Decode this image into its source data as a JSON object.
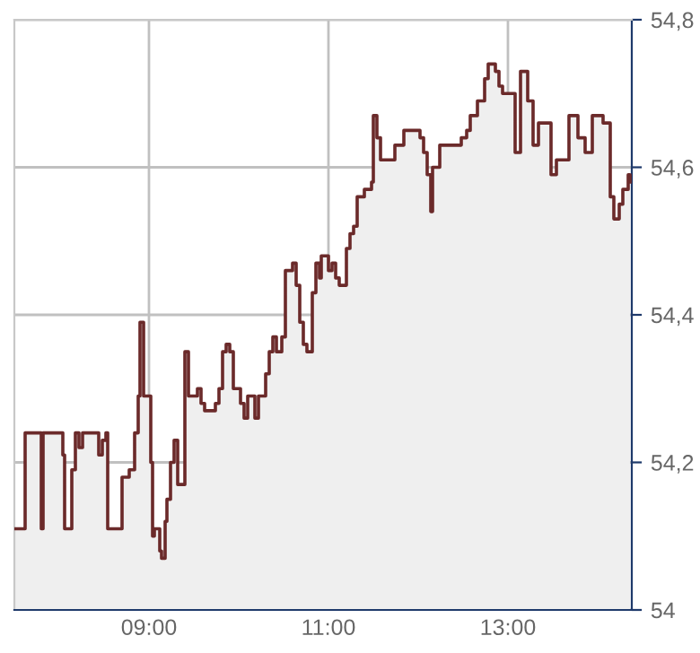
{
  "chart_data": {
    "type": "step",
    "xlim": [
      7.5,
      14.38
    ],
    "ylim": [
      54,
      54.8
    ],
    "xticks": [
      {
        "value": 9,
        "label": "09:00"
      },
      {
        "value": 11,
        "label": "11:00"
      },
      {
        "value": 13,
        "label": "13:00"
      }
    ],
    "yticks": [
      {
        "value": 54,
        "label": "54"
      },
      {
        "value": 54.2,
        "label": "54,2"
      },
      {
        "value": 54.4,
        "label": "54,4"
      },
      {
        "value": 54.6,
        "label": "54,6"
      },
      {
        "value": 54.8,
        "label": "54,8"
      }
    ],
    "grid": true,
    "marker": "none",
    "line_style": "solid",
    "x": [
      7.5,
      7.62,
      7.8,
      7.82,
      8.04,
      8.06,
      8.14,
      8.18,
      8.22,
      8.26,
      8.44,
      8.48,
      8.52,
      8.54,
      8.7,
      8.78,
      8.84,
      8.88,
      8.9,
      8.94,
      9.02,
      9.04,
      9.06,
      9.12,
      9.14,
      9.18,
      9.2,
      9.24,
      9.28,
      9.32,
      9.4,
      9.44,
      9.54,
      9.58,
      9.62,
      9.7,
      9.74,
      9.78,
      9.82,
      9.86,
      9.9,
      9.94,
      10.02,
      10.06,
      10.1,
      10.18,
      10.22,
      10.3,
      10.34,
      10.38,
      10.42,
      10.48,
      10.52,
      10.6,
      10.64,
      10.68,
      10.72,
      10.76,
      10.82,
      10.86,
      10.9,
      10.92,
      11.0,
      11.04,
      11.08,
      11.12,
      11.2,
      11.24,
      11.28,
      11.32,
      11.4,
      11.48,
      11.5,
      11.54,
      11.58,
      11.68,
      11.74,
      11.84,
      11.94,
      12.02,
      12.06,
      12.1,
      12.14,
      12.16,
      12.24,
      12.32,
      12.48,
      12.54,
      12.58,
      12.66,
      12.74,
      12.78,
      12.86,
      12.9,
      12.94,
      13.02,
      13.08,
      13.14,
      13.22,
      13.28,
      13.34,
      13.48,
      13.54,
      13.68,
      13.78,
      13.86,
      13.94,
      14.06,
      14.14,
      14.18,
      14.24,
      14.28,
      14.34,
      14.36
    ],
    "series": [
      {
        "type": "area",
        "color": "#efefef",
        "values": [
          54.11,
          54.24,
          54.11,
          54.24,
          54.21,
          54.11,
          54.19,
          54.24,
          54.22,
          54.24,
          54.21,
          54.23,
          54.24,
          54.11,
          54.18,
          54.19,
          54.24,
          54.29,
          54.39,
          54.29,
          54.2,
          54.1,
          54.11,
          54.08,
          54.07,
          54.12,
          54.15,
          54.2,
          54.23,
          54.17,
          54.35,
          54.29,
          54.3,
          54.28,
          54.27,
          54.27,
          54.28,
          54.3,
          54.35,
          54.36,
          54.35,
          54.3,
          54.28,
          54.26,
          54.29,
          54.26,
          54.29,
          54.32,
          54.35,
          54.37,
          54.35,
          54.37,
          54.46,
          54.47,
          54.44,
          54.39,
          54.36,
          54.35,
          54.43,
          54.47,
          54.45,
          54.48,
          54.46,
          54.47,
          54.45,
          54.44,
          54.49,
          54.51,
          54.52,
          54.56,
          54.57,
          54.58,
          54.67,
          54.64,
          54.61,
          54.61,
          54.63,
          54.65,
          54.65,
          54.64,
          54.62,
          54.59,
          54.54,
          54.6,
          54.63,
          54.63,
          54.64,
          54.65,
          54.67,
          54.69,
          54.72,
          54.74,
          54.73,
          54.71,
          54.7,
          54.7,
          54.62,
          54.73,
          54.69,
          54.63,
          54.66,
          54.59,
          54.61,
          54.67,
          54.64,
          54.62,
          54.67,
          54.66,
          54.56,
          54.53,
          54.55,
          54.57,
          54.59,
          54.58
        ]
      },
      {
        "color": "#6b2a2a",
        "values": [
          54.11,
          54.24,
          54.11,
          54.24,
          54.21,
          54.11,
          54.19,
          54.24,
          54.22,
          54.24,
          54.21,
          54.23,
          54.24,
          54.11,
          54.18,
          54.19,
          54.24,
          54.29,
          54.39,
          54.29,
          54.2,
          54.1,
          54.11,
          54.08,
          54.07,
          54.12,
          54.15,
          54.2,
          54.23,
          54.17,
          54.35,
          54.29,
          54.3,
          54.28,
          54.27,
          54.27,
          54.28,
          54.3,
          54.35,
          54.36,
          54.35,
          54.3,
          54.28,
          54.26,
          54.29,
          54.26,
          54.29,
          54.32,
          54.35,
          54.37,
          54.35,
          54.37,
          54.46,
          54.47,
          54.44,
          54.39,
          54.36,
          54.35,
          54.43,
          54.47,
          54.45,
          54.48,
          54.46,
          54.47,
          54.45,
          54.44,
          54.49,
          54.51,
          54.52,
          54.56,
          54.57,
          54.58,
          54.67,
          54.64,
          54.61,
          54.61,
          54.63,
          54.65,
          54.65,
          54.64,
          54.62,
          54.59,
          54.54,
          54.6,
          54.63,
          54.63,
          54.64,
          54.65,
          54.67,
          54.69,
          54.72,
          54.74,
          54.73,
          54.71,
          54.7,
          54.7,
          54.62,
          54.73,
          54.69,
          54.63,
          54.66,
          54.59,
          54.61,
          54.67,
          54.64,
          54.62,
          54.67,
          54.66,
          54.56,
          54.53,
          54.55,
          54.57,
          54.59,
          54.58
        ]
      }
    ]
  }
}
